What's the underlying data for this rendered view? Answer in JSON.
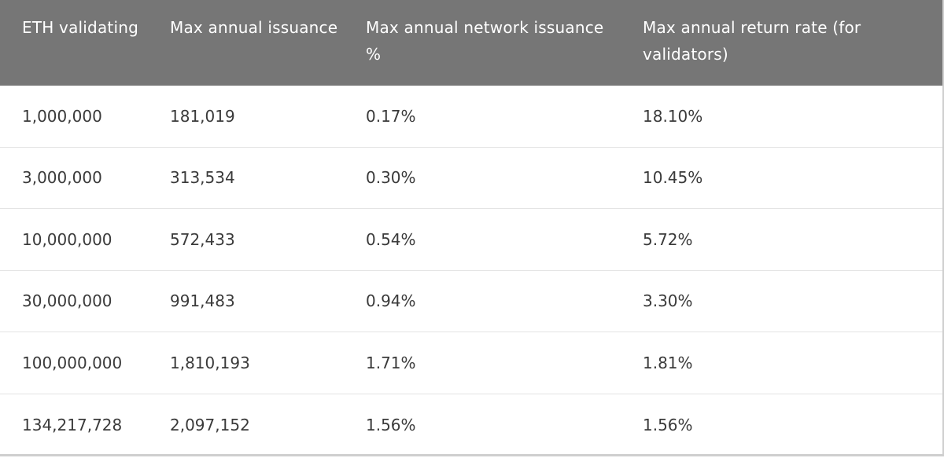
{
  "table": {
    "headers": [
      "ETH validating",
      "Max annual issuance",
      "Max annual network issuance %",
      "Max annual return rate (for validators)"
    ],
    "rows": [
      [
        "1,000,000",
        "181,019",
        "0.17%",
        "18.10%"
      ],
      [
        "3,000,000",
        "313,534",
        "0.30%",
        "10.45%"
      ],
      [
        "10,000,000",
        "572,433",
        "0.54%",
        "5.72%"
      ],
      [
        "30,000,000",
        "991,483",
        "0.94%",
        "3.30%"
      ],
      [
        "100,000,000",
        "1,810,193",
        "1.71%",
        "1.81%"
      ],
      [
        "134,217,728",
        "2,097,152",
        "1.56%",
        "1.56%"
      ]
    ]
  },
  "colors": {
    "header_background": "#767676",
    "header_text": "#ffffff",
    "body_text": "#3a3a3a",
    "row_divider": "#e3e3e3"
  }
}
